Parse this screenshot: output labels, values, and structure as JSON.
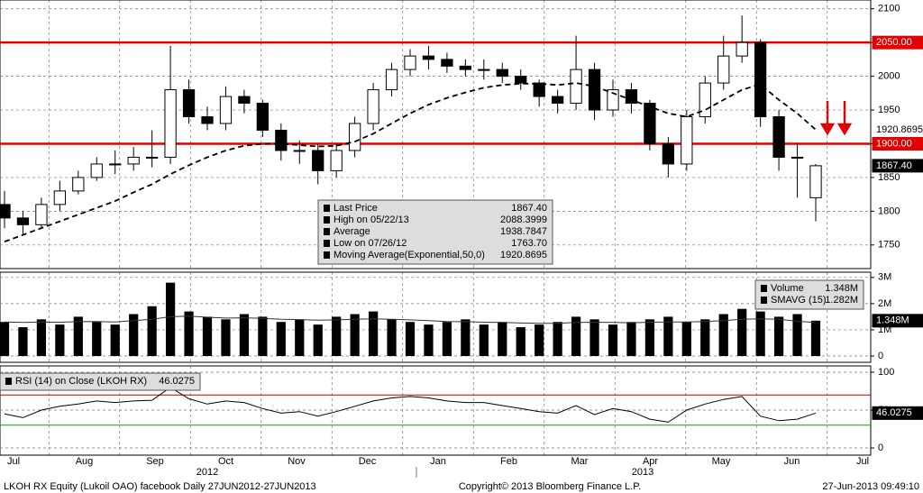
{
  "chart_data": [
    {
      "type": "candlestick",
      "ylim": [
        1715,
        2113
      ],
      "yticks": [
        1750,
        1800,
        1850,
        1900,
        1950,
        2000,
        2050,
        2100
      ],
      "grid": true,
      "series": [
        {
          "name": "Last Price",
          "color": "#000000",
          "open": [
            1810,
            1790,
            1780,
            1810,
            1830,
            1850,
            1870,
            1870,
            1880,
            1880,
            1980,
            1940,
            1930,
            1970,
            1960,
            1920,
            1890,
            1890,
            1860,
            1890,
            1930,
            1980,
            2010,
            2030,
            2025,
            2015,
            2010,
            2010,
            2000,
            1990,
            1970,
            1960,
            2010,
            1950,
            1980,
            1960,
            1900,
            1870,
            1940,
            1990,
            2030,
            2050,
            1940,
            1880,
            1820
          ],
          "high": [
            1830,
            1800,
            1820,
            1845,
            1860,
            1880,
            1890,
            1895,
            1920,
            2045,
            1995,
            1955,
            1985,
            1980,
            1965,
            1930,
            1905,
            1900,
            1900,
            1940,
            1990,
            2020,
            2040,
            2045,
            2035,
            2025,
            2025,
            2020,
            2010,
            1995,
            1980,
            2060,
            2020,
            1995,
            1990,
            1965,
            1910,
            1950,
            2000,
            2060,
            2090,
            2055,
            1950,
            1900,
            1870
          ],
          "low": [
            1775,
            1765,
            1775,
            1800,
            1825,
            1845,
            1855,
            1860,
            1865,
            1870,
            1930,
            1920,
            1920,
            1945,
            1910,
            1875,
            1870,
            1840,
            1850,
            1880,
            1920,
            1970,
            2000,
            2010,
            2005,
            2000,
            1995,
            1990,
            1980,
            1955,
            1945,
            1950,
            1935,
            1940,
            1945,
            1890,
            1850,
            1860,
            1930,
            1980,
            2020,
            1925,
            1860,
            1820,
            1785
          ],
          "close": [
            1790,
            1780,
            1810,
            1830,
            1850,
            1870,
            1870,
            1880,
            1880,
            1980,
            1940,
            1930,
            1970,
            1960,
            1920,
            1890,
            1890,
            1860,
            1890,
            1930,
            1980,
            2010,
            2030,
            2025,
            2015,
            2010,
            2010,
            2000,
            1990,
            1970,
            1960,
            2010,
            1950,
            1980,
            1960,
            1900,
            1870,
            1940,
            1990,
            2030,
            2050,
            1940,
            1880,
            1880,
            1867.4
          ]
        },
        {
          "name": "Moving Average(Exponential,50,0)",
          "color": "#000000",
          "style": "dashed",
          "values": [
            1755,
            1765,
            1775,
            1785,
            1795,
            1805,
            1815,
            1828,
            1840,
            1855,
            1868,
            1880,
            1890,
            1897,
            1900,
            1900,
            1898,
            1896,
            1897,
            1903,
            1915,
            1930,
            1945,
            1958,
            1968,
            1976,
            1983,
            1987,
            1989,
            1989,
            1987,
            1990,
            1985,
            1975,
            1965,
            1955,
            1945,
            1940,
            1950,
            1965,
            1980,
            1988,
            1965,
            1945,
            1920.8695
          ]
        }
      ],
      "hlines": [
        {
          "value": 2050,
          "color": "#e00000"
        },
        {
          "value": 1900,
          "color": "#e00000"
        }
      ],
      "tags": [
        {
          "value": 2050,
          "label": "2050.00",
          "color": "#e00000",
          "text_color": "#ffffff"
        },
        {
          "value": 1920.8695,
          "label": "1920.8695",
          "color": "#ffffff",
          "text_color": "#000000"
        },
        {
          "value": 1900,
          "label": "1900.00",
          "color": "#e00000",
          "text_color": "#ffffff"
        },
        {
          "value": 1867.4,
          "label": "1867.40",
          "color": "#000000",
          "text_color": "#ffffff"
        }
      ],
      "legend": [
        {
          "label": "Last Price",
          "value": "1867.40"
        },
        {
          "label": "High on 05/22/13",
          "value": "2088.3999"
        },
        {
          "label": "Average",
          "value": "1938.7847"
        },
        {
          "label": "Low on 07/26/12",
          "value": "1763.70"
        },
        {
          "label": "Moving Average(Exponential,50,0)",
          "value": "1920.8695"
        }
      ]
    },
    {
      "type": "bar",
      "ylim": [
        -240000,
        3200000
      ],
      "yticks": [
        0,
        {
          "value": 1000000,
          "label": "1M"
        },
        {
          "value": 2000000,
          "label": "2M"
        },
        {
          "value": 3000000,
          "label": "3M"
        }
      ],
      "grid": true,
      "series": [
        {
          "name": "Volume",
          "color": "#000000",
          "values": [
            1300000,
            1100000,
            1400000,
            1200000,
            1500000,
            1300000,
            1200000,
            1600000,
            1900000,
            2800000,
            1700000,
            1500000,
            1400000,
            1600000,
            1500000,
            1300000,
            1400000,
            1200000,
            1500000,
            1600000,
            1700000,
            1400000,
            1300000,
            1200000,
            1300000,
            1400000,
            1200000,
            1300000,
            1100000,
            1200000,
            1300000,
            1500000,
            1400000,
            1200000,
            1300000,
            1400000,
            1500000,
            1300000,
            1400000,
            1600000,
            1800000,
            1700000,
            1500000,
            1600000,
            1348000
          ]
        },
        {
          "name": "SMAVG (15)",
          "color": "#333333",
          "values": [
            1300000,
            1280000,
            1300000,
            1290000,
            1310000,
            1320000,
            1300000,
            1350000,
            1400000,
            1500000,
            1520000,
            1480000,
            1450000,
            1460000,
            1440000,
            1400000,
            1390000,
            1370000,
            1380000,
            1400000,
            1420000,
            1400000,
            1380000,
            1350000,
            1320000,
            1310000,
            1290000,
            1280000,
            1260000,
            1250000,
            1250000,
            1280000,
            1290000,
            1280000,
            1270000,
            1290000,
            1300000,
            1300000,
            1320000,
            1350000,
            1400000,
            1420000,
            1400000,
            1330000,
            1282000
          ]
        }
      ],
      "tags": [
        {
          "value": 1348000,
          "label": "1.348M",
          "color": "#000000",
          "text_color": "#ffffff"
        }
      ],
      "legend": [
        {
          "label": "Volume",
          "value": "1.348M"
        },
        {
          "label": "SMAVG (15)",
          "value": "1.282M"
        }
      ]
    },
    {
      "type": "line",
      "ylim": [
        -9.5,
        108.3
      ],
      "yticks": [
        0,
        50,
        100
      ],
      "grid": true,
      "series": [
        {
          "name": "RSI (14) on Close (LKOH RX)",
          "color": "#000000",
          "values": [
            45,
            40,
            50,
            55,
            58,
            62,
            60,
            62,
            63,
            80,
            65,
            58,
            62,
            60,
            52,
            46,
            48,
            42,
            48,
            55,
            62,
            66,
            68,
            66,
            62,
            60,
            60,
            56,
            52,
            48,
            46,
            56,
            44,
            52,
            48,
            38,
            34,
            50,
            58,
            64,
            68,
            42,
            36,
            38,
            46.0275
          ]
        }
      ],
      "hlines": [
        {
          "value": 70,
          "color": "#c00000"
        },
        {
          "value": 30,
          "color": "#00b000"
        }
      ],
      "tags": [
        {
          "value": 46.0275,
          "label": "46.0275",
          "color": "#000000",
          "text_color": "#ffffff"
        }
      ],
      "legend": [
        {
          "label": "RSI (14) on Close (LKOH RX)",
          "value": "46.0275"
        }
      ]
    }
  ],
  "months": [
    "Jul",
    "Aug",
    "Sep",
    "Oct",
    "Nov",
    "Dec",
    "Jan",
    "Feb",
    "Mar",
    "Apr",
    "May",
    "Jun",
    "Jul"
  ],
  "years": [
    "2012",
    "2013"
  ],
  "footer": {
    "left": "LKOH RX Equity (Lukoil OAO) facebook  Daily 27JUN2012-27JUN2013",
    "center": "Copyright© 2013 Bloomberg Finance L.P.",
    "right": "27-Jun-2013 09:49:10"
  }
}
